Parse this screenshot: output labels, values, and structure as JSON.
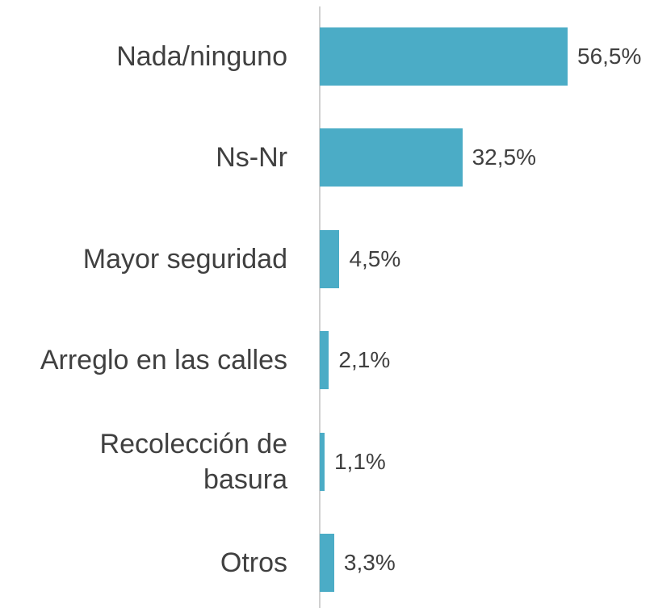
{
  "chart_data": {
    "type": "bar",
    "orientation": "horizontal",
    "categories": [
      "Nada/ninguno",
      "Ns-Nr",
      "Mayor seguridad",
      "Arreglo en las calles",
      "Recolección de basura",
      "Otros"
    ],
    "values": [
      56.5,
      32.5,
      4.5,
      2.1,
      1.1,
      3.3
    ],
    "value_labels": [
      "56,5%",
      "32,5%",
      "4,5%",
      "2,1%",
      "1,1%",
      "3,3%"
    ],
    "color": "#4bacc6"
  }
}
